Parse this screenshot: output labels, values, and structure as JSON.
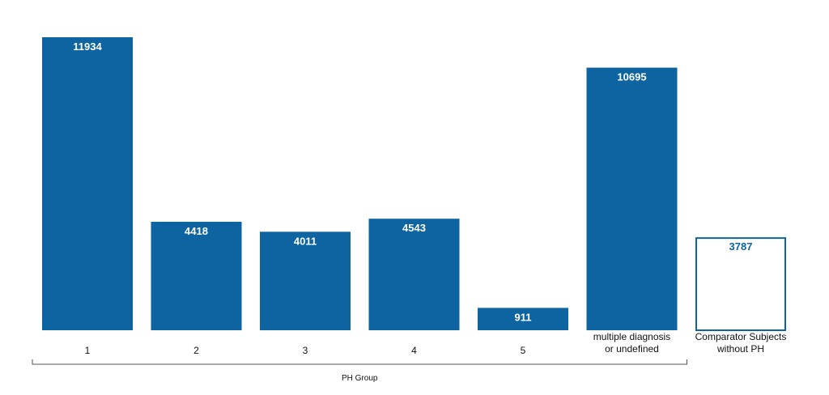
{
  "chart_data": {
    "type": "bar",
    "categories": [
      [
        "1"
      ],
      [
        "2"
      ],
      [
        "3"
      ],
      [
        "4"
      ],
      [
        "5"
      ],
      [
        "multiple diagnosis",
        "or undefined"
      ],
      [
        "Comparator Subjects",
        "without PH"
      ]
    ],
    "values": [
      11934,
      4418,
      4011,
      4543,
      911,
      10695,
      3787
    ],
    "styles": [
      "filled",
      "filled",
      "filled",
      "filled",
      "filled",
      "filled",
      "outline"
    ],
    "group_label": "PH Group",
    "group_span": [
      0,
      5
    ],
    "ylim": [
      0,
      11934
    ],
    "grid": false,
    "colors": {
      "bar": "#0d64a0",
      "outline_fill": "#ffffff",
      "bracket": "#555555",
      "label_light": "#ffffff"
    }
  }
}
